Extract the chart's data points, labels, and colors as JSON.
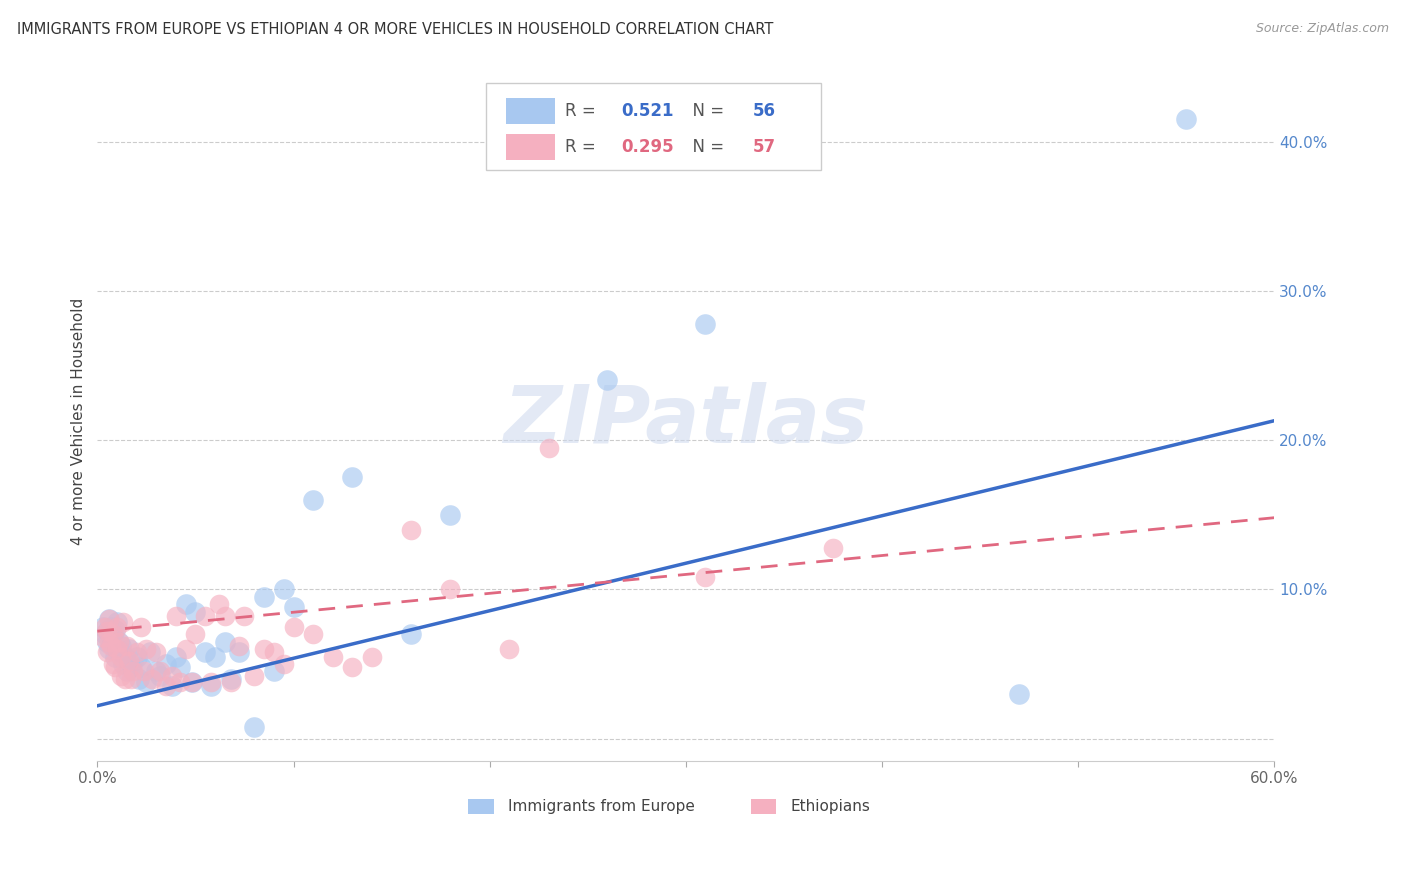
{
  "title": "IMMIGRANTS FROM EUROPE VS ETHIOPIAN 4 OR MORE VEHICLES IN HOUSEHOLD CORRELATION CHART",
  "source": "Source: ZipAtlas.com",
  "ylabel": "4 or more Vehicles in Household",
  "xmin": 0.0,
  "xmax": 0.6,
  "ymin": -0.015,
  "ymax": 0.44,
  "xticks": [
    0.0,
    0.1,
    0.2,
    0.3,
    0.4,
    0.5,
    0.6
  ],
  "yticks": [
    0.0,
    0.1,
    0.2,
    0.3,
    0.4
  ],
  "ytick_labels": [
    "",
    "10.0%",
    "20.0%",
    "30.0%",
    "40.0%"
  ],
  "xtick_labels": [
    "0.0%",
    "",
    "",
    "",
    "",
    "",
    "60.0%"
  ],
  "legend_label1": "Immigrants from Europe",
  "legend_label2": "Ethiopians",
  "R1": "0.521",
  "N1": "56",
  "R2": "0.295",
  "N2": "57",
  "color_blue": "#a8c8f0",
  "color_blue_line": "#3a6cc8",
  "color_pink": "#f5b0c0",
  "color_pink_line": "#e06880",
  "watermark": "ZIPatlas",
  "blue_line_x0": 0.0,
  "blue_line_y0": 0.022,
  "blue_line_x1": 0.6,
  "blue_line_y1": 0.213,
  "pink_line_x0": 0.0,
  "pink_line_y0": 0.072,
  "pink_line_x1": 0.6,
  "pink_line_y1": 0.148,
  "blue_x": [
    0.003,
    0.004,
    0.005,
    0.005,
    0.006,
    0.006,
    0.007,
    0.007,
    0.008,
    0.008,
    0.009,
    0.009,
    0.01,
    0.01,
    0.011,
    0.012,
    0.012,
    0.013,
    0.014,
    0.015,
    0.016,
    0.017,
    0.018,
    0.02,
    0.021,
    0.022,
    0.025,
    0.027,
    0.03,
    0.032,
    0.035,
    0.038,
    0.04,
    0.042,
    0.045,
    0.048,
    0.05,
    0.055,
    0.058,
    0.06,
    0.065,
    0.068,
    0.072,
    0.08,
    0.085,
    0.09,
    0.095,
    0.1,
    0.11,
    0.13,
    0.16,
    0.18,
    0.26,
    0.31,
    0.47,
    0.555
  ],
  "blue_y": [
    0.075,
    0.07,
    0.072,
    0.065,
    0.08,
    0.06,
    0.075,
    0.068,
    0.07,
    0.062,
    0.073,
    0.055,
    0.078,
    0.06,
    0.065,
    0.058,
    0.062,
    0.05,
    0.055,
    0.045,
    0.06,
    0.048,
    0.052,
    0.055,
    0.04,
    0.048,
    0.038,
    0.058,
    0.045,
    0.042,
    0.05,
    0.035,
    0.055,
    0.048,
    0.09,
    0.038,
    0.085,
    0.058,
    0.035,
    0.055,
    0.065,
    0.04,
    0.058,
    0.008,
    0.095,
    0.045,
    0.1,
    0.088,
    0.16,
    0.175,
    0.07,
    0.15,
    0.24,
    0.278,
    0.03,
    0.415
  ],
  "pink_x": [
    0.003,
    0.004,
    0.005,
    0.005,
    0.006,
    0.006,
    0.007,
    0.008,
    0.008,
    0.009,
    0.01,
    0.01,
    0.011,
    0.012,
    0.012,
    0.013,
    0.014,
    0.015,
    0.016,
    0.017,
    0.018,
    0.02,
    0.022,
    0.024,
    0.025,
    0.028,
    0.03,
    0.032,
    0.035,
    0.038,
    0.04,
    0.042,
    0.045,
    0.048,
    0.05,
    0.055,
    0.058,
    0.062,
    0.065,
    0.068,
    0.072,
    0.075,
    0.08,
    0.085,
    0.09,
    0.095,
    0.1,
    0.11,
    0.12,
    0.13,
    0.14,
    0.16,
    0.18,
    0.21,
    0.23,
    0.31,
    0.375
  ],
  "pink_y": [
    0.068,
    0.075,
    0.072,
    0.058,
    0.065,
    0.08,
    0.062,
    0.05,
    0.07,
    0.048,
    0.06,
    0.075,
    0.065,
    0.042,
    0.055,
    0.078,
    0.04,
    0.062,
    0.052,
    0.04,
    0.045,
    0.058,
    0.075,
    0.045,
    0.06,
    0.04,
    0.058,
    0.045,
    0.035,
    0.042,
    0.082,
    0.038,
    0.06,
    0.038,
    0.07,
    0.082,
    0.038,
    0.09,
    0.082,
    0.038,
    0.062,
    0.082,
    0.042,
    0.06,
    0.058,
    0.05,
    0.075,
    0.07,
    0.055,
    0.048,
    0.055,
    0.14,
    0.1,
    0.06,
    0.195,
    0.108,
    0.128
  ]
}
